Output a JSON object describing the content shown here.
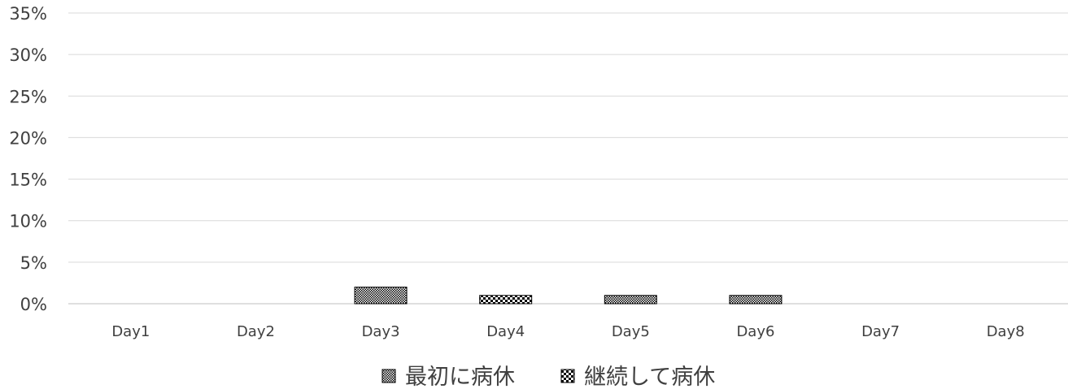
{
  "chart_data": {
    "type": "bar",
    "categories": [
      "Day1",
      "Day2",
      "Day3",
      "Day4",
      "Day5",
      "Day6",
      "Day7",
      "Day8"
    ],
    "series": [
      {
        "name": "最初に病休",
        "values": [
          0,
          0,
          2,
          0,
          1,
          1,
          0,
          0
        ],
        "pattern": "fine-dots",
        "color": "#000000"
      },
      {
        "name": "継続して病休",
        "values": [
          0,
          0,
          0,
          1,
          0,
          0,
          0,
          0
        ],
        "pattern": "checker",
        "color": "#000000"
      }
    ],
    "stacked": true,
    "ylim": [
      0,
      35
    ],
    "yticks": [
      0,
      5,
      10,
      15,
      20,
      25,
      30,
      35
    ],
    "ytick_suffix": "%",
    "grid": true,
    "legend_position": "bottom",
    "title": "",
    "xlabel": "",
    "ylabel": "",
    "colors": {
      "gridline": "#d9d9d9",
      "axis": "#bfbfbf",
      "text": "#404040"
    }
  }
}
